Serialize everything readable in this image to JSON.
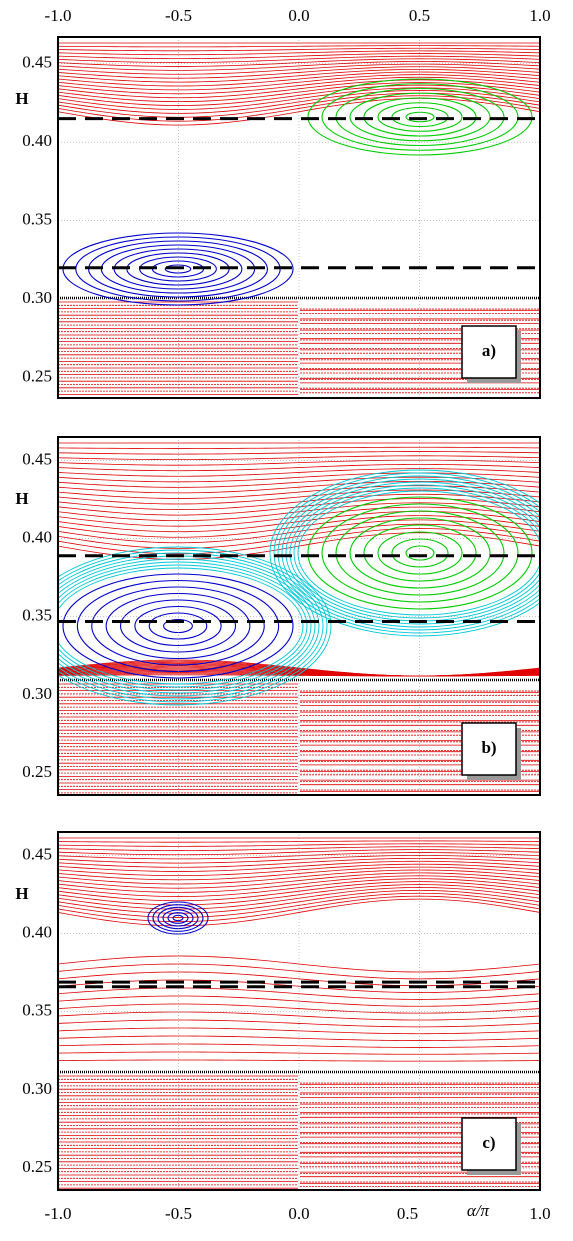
{
  "chart_data": [
    {
      "type": "line",
      "label": "a)",
      "ylabel": "H",
      "xlim": [
        -1,
        1
      ],
      "xticks": [
        {
          "value": -1,
          "label": "-1.0"
        },
        {
          "value": -0.5,
          "label": "-0.5"
        },
        {
          "value": 0,
          "label": "0.0"
        },
        {
          "value": 0.5,
          "label": "0.5"
        },
        {
          "value": 1,
          "label": "1.0"
        }
      ],
      "ylim": [
        0.237,
        0.467
      ],
      "yticks": [
        0.25,
        {
          "value": 0.3,
          "label": "0.30"
        },
        0.35,
        {
          "value": 0.4,
          "label": "0.40"
        },
        0.45
      ],
      "hlines": [
        0.415,
        0.32
      ],
      "grid": true
    },
    {
      "type": "line",
      "label": "b)",
      "ylabel": "H",
      "xlim": [
        -1,
        1
      ],
      "ylim": [
        0.236,
        0.465
      ],
      "yticks": [
        0.25,
        {
          "value": 0.3,
          "label": "0.30"
        },
        0.35,
        {
          "value": 0.4,
          "label": "0.40"
        },
        0.45
      ],
      "hlines": [
        0.389,
        0.347
      ],
      "grid": true
    },
    {
      "type": "line",
      "label": "c)",
      "ylabel": "H",
      "xlabel": "α/π",
      "xlim": [
        -1,
        1
      ],
      "xticks": [
        {
          "value": -1,
          "label": "-1.0"
        },
        {
          "value": -0.5,
          "label": "-0.5"
        },
        {
          "value": 0,
          "label": "0.0"
        },
        {
          "value": 0.5,
          "label": "0.5"
        },
        {
          "value": 1,
          "label": "1.0"
        }
      ],
      "ylim": [
        0.236,
        0.465
      ],
      "yticks": [
        0.25,
        {
          "value": 0.3,
          "label": "0.30"
        },
        0.35,
        {
          "value": 0.4,
          "label": "0.40"
        },
        0.45
      ],
      "hlines": [
        0.369,
        0.366
      ],
      "grid": true
    }
  ]
}
